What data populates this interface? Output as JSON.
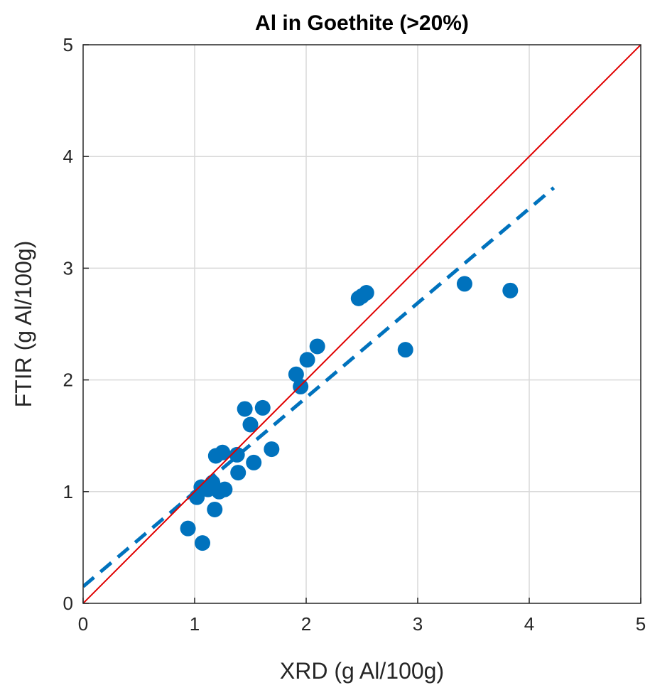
{
  "chart_data": {
    "type": "scatter",
    "title": "Al in Goethite (>20%)",
    "xlabel": "XRD (g Al/100g)",
    "ylabel": "FTIR (g Al/100g)",
    "xlim": [
      0,
      5
    ],
    "ylim": [
      0,
      5
    ],
    "x_ticks": [
      "0",
      "1",
      "2",
      "3",
      "4",
      "5"
    ],
    "y_ticks": [
      "0",
      "1",
      "2",
      "3",
      "4",
      "5"
    ],
    "grid": true,
    "series": [
      {
        "type": "scatter",
        "color": "#0072BD",
        "points": [
          {
            "x": 0.94,
            "y": 0.67
          },
          {
            "x": 1.07,
            "y": 0.54
          },
          {
            "x": 1.02,
            "y": 0.95
          },
          {
            "x": 1.06,
            "y": 1.04
          },
          {
            "x": 1.12,
            "y": 1.02
          },
          {
            "x": 1.16,
            "y": 1.08
          },
          {
            "x": 1.18,
            "y": 0.84
          },
          {
            "x": 1.19,
            "y": 1.32
          },
          {
            "x": 1.22,
            "y": 1.0
          },
          {
            "x": 1.25,
            "y": 1.35
          },
          {
            "x": 1.27,
            "y": 1.02
          },
          {
            "x": 1.38,
            "y": 1.33
          },
          {
            "x": 1.39,
            "y": 1.17
          },
          {
            "x": 1.45,
            "y": 1.74
          },
          {
            "x": 1.5,
            "y": 1.6
          },
          {
            "x": 1.53,
            "y": 1.26
          },
          {
            "x": 1.61,
            "y": 1.75
          },
          {
            "x": 1.69,
            "y": 1.38
          },
          {
            "x": 1.91,
            "y": 2.05
          },
          {
            "x": 1.95,
            "y": 1.94
          },
          {
            "x": 2.01,
            "y": 2.18
          },
          {
            "x": 2.1,
            "y": 2.3
          },
          {
            "x": 2.47,
            "y": 2.73
          },
          {
            "x": 2.5,
            "y": 2.75
          },
          {
            "x": 2.54,
            "y": 2.78
          },
          {
            "x": 2.89,
            "y": 2.27
          },
          {
            "x": 3.42,
            "y": 2.86
          },
          {
            "x": 3.83,
            "y": 2.8
          }
        ]
      },
      {
        "type": "line",
        "style": "dashed",
        "color": "#0072BD",
        "x": [
          0,
          4.22
        ],
        "y": [
          0.15,
          3.72
        ]
      },
      {
        "type": "line",
        "style": "solid",
        "color": "#E00000",
        "x": [
          0,
          5
        ],
        "y": [
          0,
          5
        ]
      }
    ]
  }
}
